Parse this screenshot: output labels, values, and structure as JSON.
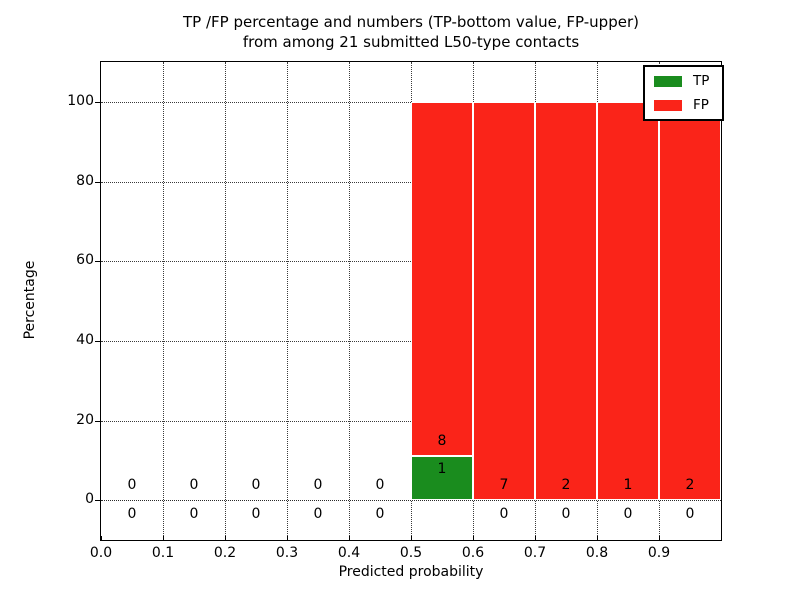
{
  "chart_data": {
    "type": "bar",
    "stacked": true,
    "title_line1": "TP /FP percentage and numbers (TP-bottom value, FP-upper)",
    "title_line2": "from among 21 submitted L50-type contacts",
    "xlabel": "Predicted probability",
    "ylabel": "Percentage",
    "xlim": [
      0.0,
      1.0
    ],
    "ylim": [
      -10,
      110
    ],
    "xtick_values": [
      0.0,
      0.1,
      0.2,
      0.3,
      0.4,
      0.5,
      0.6,
      0.7,
      0.8,
      0.9
    ],
    "xtick_labels": [
      "0.0",
      "0.1",
      "0.2",
      "0.3",
      "0.4",
      "0.5",
      "0.6",
      "0.7",
      "0.8",
      "0.9"
    ],
    "ytick_values": [
      0,
      20,
      40,
      60,
      80,
      100
    ],
    "ytick_labels": [
      "0",
      "20",
      "40",
      "60",
      "80",
      "100"
    ],
    "grid": {
      "visible": true,
      "linestyle": "dotted",
      "color": "#000000"
    },
    "bin_edges": [
      0.0,
      0.1,
      0.2,
      0.3,
      0.4,
      0.5,
      0.6,
      0.7,
      0.8,
      0.9,
      1.0
    ],
    "series": [
      {
        "name": "TP",
        "color": "#1a8c1e",
        "counts": [
          0,
          0,
          0,
          0,
          0,
          1,
          0,
          0,
          0,
          0
        ],
        "pct": [
          0,
          0,
          0,
          0,
          0,
          11.11,
          0,
          0,
          0,
          0
        ]
      },
      {
        "name": "FP",
        "color": "#fa2419",
        "counts": [
          0,
          0,
          0,
          0,
          0,
          8,
          7,
          2,
          1,
          2
        ],
        "pct": [
          0,
          0,
          0,
          0,
          0,
          88.89,
          100,
          100,
          100,
          100
        ]
      }
    ],
    "legend": {
      "position": "upper right",
      "entries": [
        {
          "label": "TP",
          "color": "#1a8c1e"
        },
        {
          "label": "FP",
          "color": "#fa2419"
        }
      ]
    }
  }
}
